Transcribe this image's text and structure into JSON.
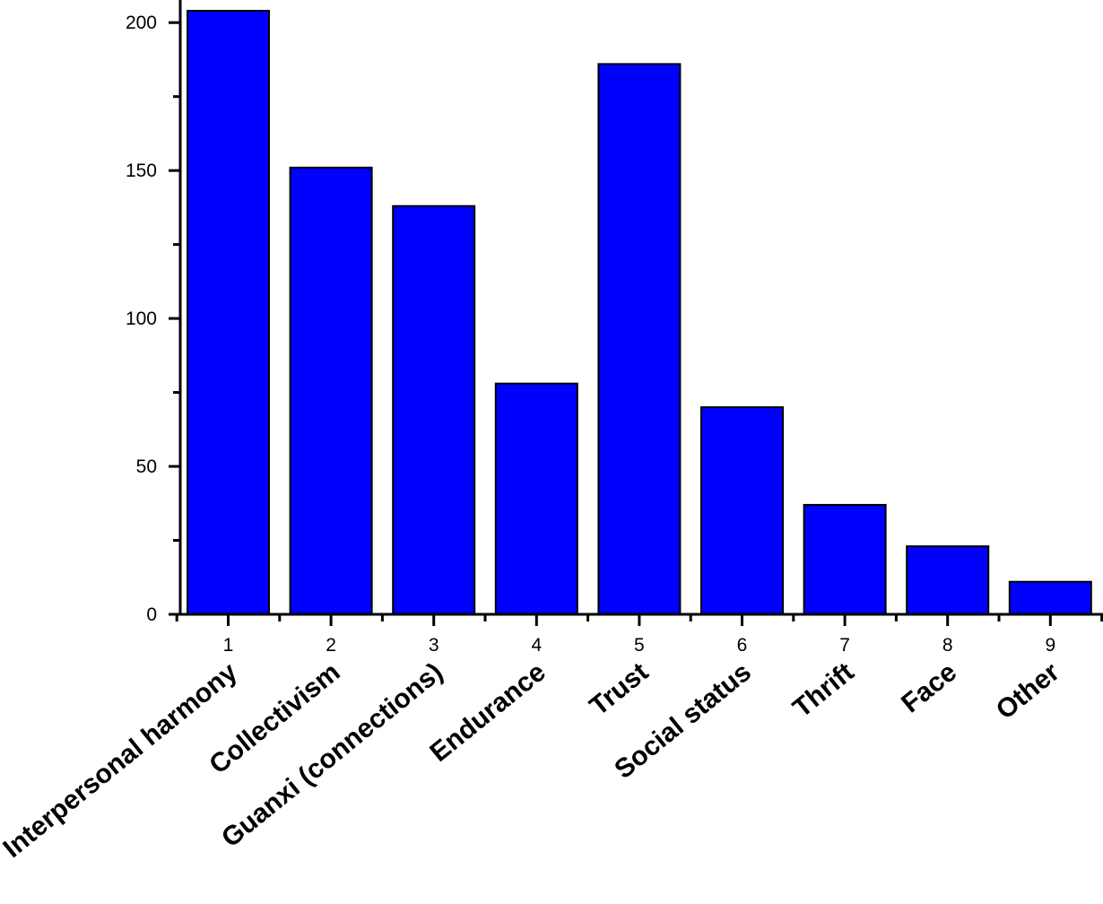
{
  "chart_data": {
    "type": "bar",
    "x": [
      1,
      2,
      3,
      4,
      5,
      6,
      7,
      8,
      9
    ],
    "categories": [
      "Interpersonal harmony",
      "Collectivism",
      "Guanxi (connections)",
      "Endurance",
      "Trust",
      "Social status",
      "Thrift",
      "Face",
      "Other"
    ],
    "values": [
      204,
      151,
      138,
      78,
      186,
      70,
      37,
      23,
      11
    ],
    "title": "",
    "xlabel": "",
    "ylabel": "",
    "ylim": [
      0,
      204
    ],
    "yticks": [
      0,
      50,
      100,
      150,
      200
    ],
    "bar_color": "#0000ff",
    "bar_edge_color": "#000000",
    "grid": false,
    "legend": "none"
  }
}
